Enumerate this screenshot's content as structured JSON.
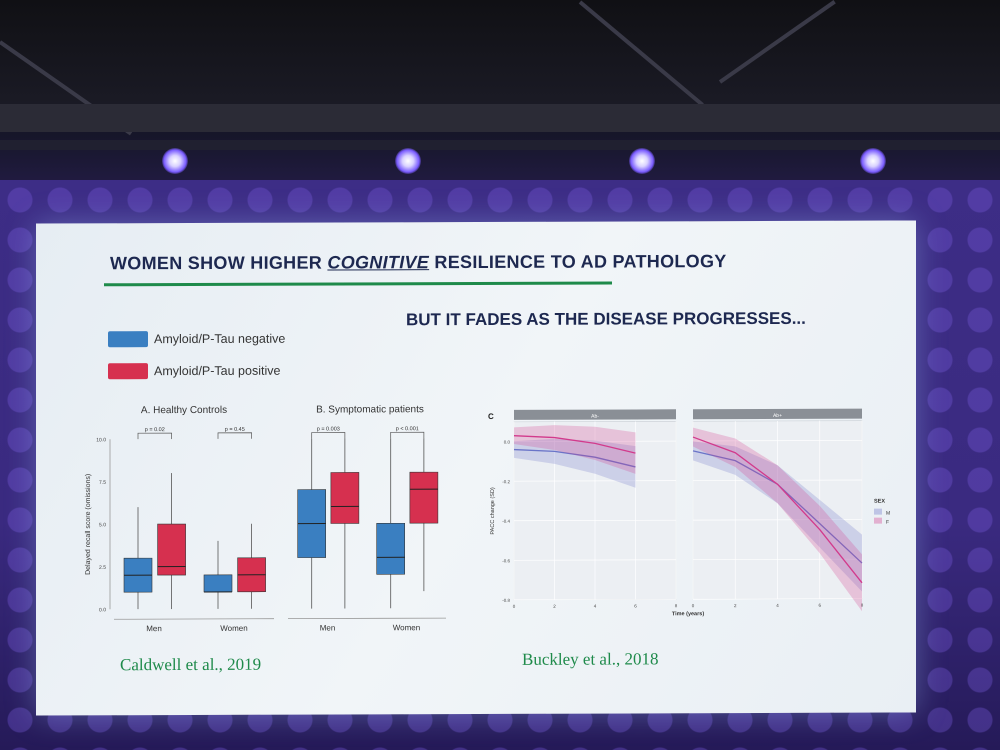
{
  "slide": {
    "title_part1": "WOMEN SHOW HIGHER ",
    "title_emphasis": "COGNITIVE",
    "title_part2": " RESILIENCE TO AD PATHOLOGY",
    "subtitle": "BUT IT FADES AS THE DISEASE PROGRESSES...",
    "legend": [
      {
        "label": "Amyloid/P-Tau negative",
        "color": "#3a7fc1"
      },
      {
        "label": "Amyloid/P-Tau positive",
        "color": "#d6304f"
      }
    ],
    "citation_left": "Caldwell et al., 2019",
    "citation_right": "Buckley et al.,  2018",
    "accent_green": "#1e8a4a",
    "title_color": "#1d2850"
  },
  "chart_data": [
    {
      "type": "box",
      "title": "A. Healthy Controls",
      "ylabel": "Delayed recall score (omissions)",
      "ylim": [
        0,
        10
      ],
      "yticks": [
        "0.0",
        "2.5",
        "5.0",
        "7.5",
        "10.0"
      ],
      "categories": [
        "Men",
        "Women"
      ],
      "annotations": [
        "p = 0.02",
        "p = 0.45"
      ],
      "series": [
        {
          "name": "Amyloid/P-Tau negative",
          "boxes": [
            {
              "min": 0,
              "q1": 1,
              "median": 2,
              "q3": 3,
              "max": 6
            },
            {
              "min": 0,
              "q1": 1,
              "median": 1,
              "q3": 2,
              "max": 4
            }
          ]
        },
        {
          "name": "Amyloid/P-Tau positive",
          "boxes": [
            {
              "min": 0,
              "q1": 2,
              "median": 2.5,
              "q3": 5,
              "max": 8
            },
            {
              "min": 0,
              "q1": 1,
              "median": 2,
              "q3": 3,
              "max": 5
            }
          ]
        }
      ]
    },
    {
      "type": "box",
      "title": "B. Symptomatic patients",
      "ylim": [
        0,
        10
      ],
      "categories": [
        "Men",
        "Women"
      ],
      "annotations": [
        "p = 0.003",
        "p < 0.001"
      ],
      "series": [
        {
          "name": "Amyloid/P-Tau negative",
          "boxes": [
            {
              "min": 0,
              "q1": 3,
              "median": 5,
              "q3": 7,
              "max": 10
            },
            {
              "min": 0,
              "q1": 2,
              "median": 3,
              "q3": 5,
              "max": 10
            }
          ]
        },
        {
          "name": "Amyloid/P-Tau positive",
          "boxes": [
            {
              "min": 0,
              "q1": 5,
              "median": 6,
              "q3": 8,
              "max": 10
            },
            {
              "min": 1,
              "q1": 5,
              "median": 7,
              "q3": 8,
              "max": 10
            }
          ]
        }
      ]
    },
    {
      "type": "line",
      "panel_label": "C",
      "facets": [
        "Ab-",
        "Ab+"
      ],
      "xlabel": "Time (years)",
      "ylabel": "PACC change (SD)",
      "xlim": [
        0,
        8
      ],
      "ylim": [
        -0.8,
        0.1
      ],
      "xticks": [
        "0",
        "2",
        "4",
        "6",
        "8"
      ],
      "yticks": [
        "0.0",
        "-0.2",
        "-0.4",
        "-0.6",
        "-0.8"
      ],
      "legend_title": "SEX",
      "legend": [
        "M",
        "F"
      ],
      "series": [
        {
          "name": "M",
          "facet": "Ab-",
          "x": [
            0,
            2,
            4,
            6
          ],
          "y": [
            -0.04,
            -0.05,
            -0.08,
            -0.13
          ]
        },
        {
          "name": "F",
          "facet": "Ab-",
          "x": [
            0,
            2,
            4,
            6
          ],
          "y": [
            0.03,
            0.02,
            -0.01,
            -0.06
          ]
        },
        {
          "name": "M",
          "facet": "Ab+",
          "x": [
            0,
            2,
            4,
            6,
            8
          ],
          "y": [
            -0.05,
            -0.1,
            -0.22,
            -0.42,
            -0.62
          ]
        },
        {
          "name": "F",
          "facet": "Ab+",
          "x": [
            0,
            2,
            4,
            6,
            8
          ],
          "y": [
            0.02,
            -0.06,
            -0.22,
            -0.45,
            -0.72
          ]
        }
      ]
    }
  ]
}
